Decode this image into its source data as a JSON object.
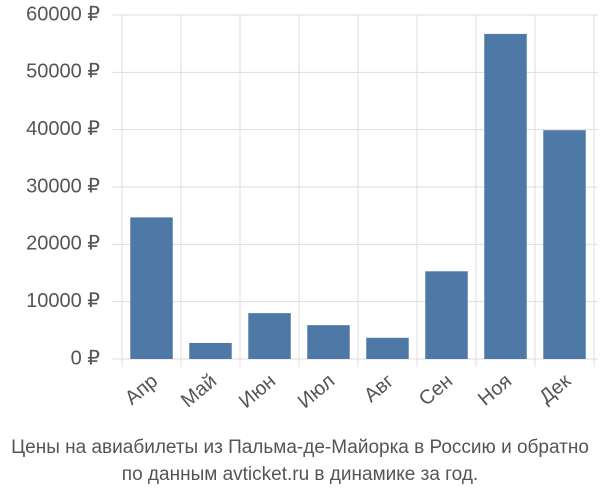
{
  "chart_data": {
    "type": "bar",
    "title": "Цены на авиабилеты из Пальма-де-Майорка в Россию и обратно",
    "subtitle": "по данным avticket.ru в динамике за год.",
    "categories": [
      "Апр",
      "Май",
      "Июн",
      "Июл",
      "Авг",
      "Сен",
      "Ноя",
      "Дек"
    ],
    "values": [
      24700,
      2800,
      8000,
      5900,
      3700,
      15300,
      56700,
      39900
    ],
    "color": "#4e79a7",
    "ylim": [
      0,
      60000
    ],
    "yticks": [
      {
        "value": 0,
        "label": "0 ₽"
      },
      {
        "value": 10000,
        "label": "10000 ₽"
      },
      {
        "value": 20000,
        "label": "20000 ₽"
      },
      {
        "value": 30000,
        "label": "30000 ₽"
      },
      {
        "value": 40000,
        "label": "40000 ₽"
      },
      {
        "value": 50000,
        "label": "50000 ₽"
      },
      {
        "value": 60000,
        "label": "60000 ₽"
      }
    ],
    "grid": true
  }
}
